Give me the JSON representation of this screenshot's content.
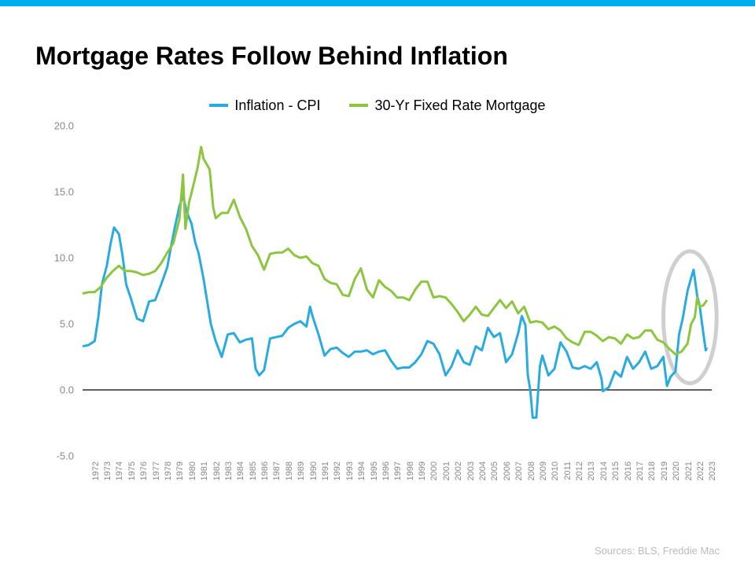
{
  "title": "Mortgage Rates Follow Behind Inflation",
  "source": "Sources: BLS, Freddie Mac",
  "chart": {
    "type": "line",
    "top_bar_color": "#00aeef",
    "background_color": "#ffffff",
    "title_fontsize": 32,
    "title_color": "#000000",
    "legend_fontsize": 18,
    "axis_label_color": "#888888",
    "axis_fontsize": 13,
    "xaxis_fontsize": 11,
    "yaxis": {
      "min": -5.0,
      "max": 20.0,
      "ticks": [
        -5.0,
        0.0,
        5.0,
        10.0,
        15.0,
        20.0
      ],
      "zero_line_color": "#000000"
    },
    "xaxis": {
      "years": [
        1972,
        1973,
        1974,
        1975,
        1976,
        1977,
        1978,
        1979,
        1980,
        1981,
        1982,
        1983,
        1984,
        1985,
        1986,
        1987,
        1988,
        1989,
        1990,
        1991,
        1992,
        1993,
        1994,
        1995,
        1996,
        1997,
        1998,
        1999,
        2000,
        2001,
        2002,
        2003,
        2004,
        2005,
        2006,
        2007,
        2008,
        2009,
        2010,
        2011,
        2012,
        2013,
        2014,
        2015,
        2016,
        2017,
        2018,
        2019,
        2020,
        2021,
        2022,
        2023
      ]
    },
    "highlight_ellipse": {
      "cx_year": 2022.2,
      "cy_value": 5.5,
      "rx_years": 2.2,
      "ry_value": 5.0,
      "stroke": "#cfcfcf",
      "stroke_width": 5
    },
    "series": [
      {
        "name": "Inflation - CPI",
        "color": "#29abe2",
        "line_width": 3.0,
        "data": [
          [
            1972,
            3.3
          ],
          [
            1972.5,
            3.4
          ],
          [
            1973,
            3.7
          ],
          [
            1973.3,
            5.5
          ],
          [
            1973.6,
            8.0
          ],
          [
            1974,
            9.4
          ],
          [
            1974.3,
            11.0
          ],
          [
            1974.6,
            12.3
          ],
          [
            1975,
            11.8
          ],
          [
            1975.3,
            10.2
          ],
          [
            1975.6,
            8.0
          ],
          [
            1976,
            6.9
          ],
          [
            1976.5,
            5.4
          ],
          [
            1977,
            5.2
          ],
          [
            1977.5,
            6.7
          ],
          [
            1978,
            6.8
          ],
          [
            1978.5,
            8.0
          ],
          [
            1979,
            9.3
          ],
          [
            1979.3,
            10.8
          ],
          [
            1979.6,
            12.2
          ],
          [
            1980,
            13.9
          ],
          [
            1980.3,
            14.7
          ],
          [
            1980.6,
            13.5
          ],
          [
            1981,
            12.6
          ],
          [
            1981.3,
            11.2
          ],
          [
            1981.6,
            10.3
          ],
          [
            1982,
            8.4
          ],
          [
            1982.3,
            6.7
          ],
          [
            1982.6,
            5.0
          ],
          [
            1983,
            3.7
          ],
          [
            1983.5,
            2.5
          ],
          [
            1984,
            4.2
          ],
          [
            1984.5,
            4.3
          ],
          [
            1985,
            3.6
          ],
          [
            1985.5,
            3.8
          ],
          [
            1986,
            3.9
          ],
          [
            1986.3,
            1.6
          ],
          [
            1986.6,
            1.1
          ],
          [
            1987,
            1.5
          ],
          [
            1987.5,
            3.9
          ],
          [
            1988,
            4.0
          ],
          [
            1988.5,
            4.1
          ],
          [
            1989,
            4.7
          ],
          [
            1989.5,
            5.0
          ],
          [
            1990,
            5.2
          ],
          [
            1990.5,
            4.8
          ],
          [
            1990.8,
            6.3
          ],
          [
            1991,
            5.6
          ],
          [
            1991.5,
            4.2
          ],
          [
            1992,
            2.6
          ],
          [
            1992.5,
            3.1
          ],
          [
            1993,
            3.2
          ],
          [
            1993.5,
            2.8
          ],
          [
            1994,
            2.5
          ],
          [
            1994.5,
            2.9
          ],
          [
            1995,
            2.9
          ],
          [
            1995.5,
            3.0
          ],
          [
            1996,
            2.7
          ],
          [
            1996.5,
            2.9
          ],
          [
            1997,
            3.0
          ],
          [
            1997.5,
            2.2
          ],
          [
            1998,
            1.6
          ],
          [
            1998.5,
            1.7
          ],
          [
            1999,
            1.7
          ],
          [
            1999.5,
            2.1
          ],
          [
            2000,
            2.7
          ],
          [
            2000.5,
            3.7
          ],
          [
            2001,
            3.5
          ],
          [
            2001.5,
            2.7
          ],
          [
            2002,
            1.1
          ],
          [
            2002.5,
            1.8
          ],
          [
            2003,
            3.0
          ],
          [
            2003.5,
            2.1
          ],
          [
            2004,
            1.9
          ],
          [
            2004.5,
            3.3
          ],
          [
            2005,
            3.0
          ],
          [
            2005.5,
            4.7
          ],
          [
            2006,
            4.0
          ],
          [
            2006.5,
            4.3
          ],
          [
            2007,
            2.1
          ],
          [
            2007.5,
            2.7
          ],
          [
            2008,
            4.3
          ],
          [
            2008.3,
            5.6
          ],
          [
            2008.6,
            4.9
          ],
          [
            2008.8,
            1.1
          ],
          [
            2009,
            0.0
          ],
          [
            2009.2,
            -2.1
          ],
          [
            2009.5,
            -2.1
          ],
          [
            2009.8,
            1.8
          ],
          [
            2010,
            2.6
          ],
          [
            2010.5,
            1.1
          ],
          [
            2011,
            1.6
          ],
          [
            2011.5,
            3.6
          ],
          [
            2012,
            2.9
          ],
          [
            2012.5,
            1.7
          ],
          [
            2013,
            1.6
          ],
          [
            2013.5,
            1.8
          ],
          [
            2014,
            1.6
          ],
          [
            2014.5,
            2.1
          ],
          [
            2014.9,
            0.8
          ],
          [
            2015,
            -0.1
          ],
          [
            2015.5,
            0.2
          ],
          [
            2016,
            1.4
          ],
          [
            2016.5,
            1.0
          ],
          [
            2017,
            2.5
          ],
          [
            2017.5,
            1.6
          ],
          [
            2018,
            2.1
          ],
          [
            2018.5,
            2.9
          ],
          [
            2019,
            1.6
          ],
          [
            2019.5,
            1.8
          ],
          [
            2020,
            2.5
          ],
          [
            2020.3,
            0.3
          ],
          [
            2020.6,
            1.0
          ],
          [
            2021,
            1.4
          ],
          [
            2021.3,
            4.2
          ],
          [
            2021.6,
            5.4
          ],
          [
            2022,
            7.5
          ],
          [
            2022.3,
            8.5
          ],
          [
            2022.5,
            9.1
          ],
          [
            2022.8,
            7.1
          ],
          [
            2023,
            6.4
          ],
          [
            2023.2,
            5.0
          ],
          [
            2023.5,
            3.0
          ],
          [
            2023.6,
            3.2
          ]
        ]
      },
      {
        "name": "30-Yr Fixed Rate Mortgage",
        "color": "#8cc63f",
        "line_width": 3.0,
        "data": [
          [
            1972,
            7.3
          ],
          [
            1972.5,
            7.4
          ],
          [
            1973,
            7.4
          ],
          [
            1973.5,
            7.8
          ],
          [
            1974,
            8.5
          ],
          [
            1974.5,
            9.0
          ],
          [
            1975,
            9.4
          ],
          [
            1975.5,
            9.0
          ],
          [
            1976,
            9.0
          ],
          [
            1976.5,
            8.9
          ],
          [
            1977,
            8.7
          ],
          [
            1977.5,
            8.8
          ],
          [
            1978,
            9.0
          ],
          [
            1978.5,
            9.6
          ],
          [
            1979,
            10.4
          ],
          [
            1979.5,
            11.1
          ],
          [
            1980,
            12.9
          ],
          [
            1980.3,
            16.3
          ],
          [
            1980.5,
            12.2
          ],
          [
            1980.8,
            14.2
          ],
          [
            1981,
            14.9
          ],
          [
            1981.5,
            16.8
          ],
          [
            1981.8,
            18.4
          ],
          [
            1982,
            17.5
          ],
          [
            1982.5,
            16.7
          ],
          [
            1982.8,
            13.8
          ],
          [
            1983,
            13.0
          ],
          [
            1983.5,
            13.4
          ],
          [
            1984,
            13.4
          ],
          [
            1984.5,
            14.4
          ],
          [
            1985,
            13.1
          ],
          [
            1985.5,
            12.2
          ],
          [
            1986,
            10.9
          ],
          [
            1986.5,
            10.2
          ],
          [
            1987,
            9.1
          ],
          [
            1987.5,
            10.3
          ],
          [
            1988,
            10.4
          ],
          [
            1988.5,
            10.4
          ],
          [
            1989,
            10.7
          ],
          [
            1989.5,
            10.2
          ],
          [
            1990,
            10.0
          ],
          [
            1990.5,
            10.1
          ],
          [
            1991,
            9.6
          ],
          [
            1991.5,
            9.4
          ],
          [
            1992,
            8.4
          ],
          [
            1992.5,
            8.1
          ],
          [
            1993,
            8.0
          ],
          [
            1993.5,
            7.2
          ],
          [
            1994,
            7.1
          ],
          [
            1994.5,
            8.4
          ],
          [
            1995,
            9.2
          ],
          [
            1995.5,
            7.6
          ],
          [
            1996,
            7.0
          ],
          [
            1996.5,
            8.3
          ],
          [
            1997,
            7.8
          ],
          [
            1997.5,
            7.5
          ],
          [
            1998,
            7.0
          ],
          [
            1998.5,
            7.0
          ],
          [
            1999,
            6.8
          ],
          [
            1999.5,
            7.6
          ],
          [
            2000,
            8.2
          ],
          [
            2000.5,
            8.2
          ],
          [
            2001,
            7.0
          ],
          [
            2001.5,
            7.1
          ],
          [
            2002,
            7.0
          ],
          [
            2002.5,
            6.5
          ],
          [
            2003,
            5.9
          ],
          [
            2003.5,
            5.2
          ],
          [
            2004,
            5.7
          ],
          [
            2004.5,
            6.3
          ],
          [
            2005,
            5.7
          ],
          [
            2005.5,
            5.6
          ],
          [
            2006,
            6.2
          ],
          [
            2006.5,
            6.8
          ],
          [
            2007,
            6.2
          ],
          [
            2007.5,
            6.7
          ],
          [
            2008,
            5.8
          ],
          [
            2008.5,
            6.3
          ],
          [
            2009,
            5.1
          ],
          [
            2009.5,
            5.2
          ],
          [
            2010,
            5.1
          ],
          [
            2010.5,
            4.6
          ],
          [
            2011,
            4.8
          ],
          [
            2011.5,
            4.5
          ],
          [
            2012,
            3.9
          ],
          [
            2012.5,
            3.6
          ],
          [
            2013,
            3.4
          ],
          [
            2013.5,
            4.4
          ],
          [
            2014,
            4.4
          ],
          [
            2014.5,
            4.1
          ],
          [
            2015,
            3.7
          ],
          [
            2015.5,
            4.0
          ],
          [
            2016,
            3.9
          ],
          [
            2016.5,
            3.5
          ],
          [
            2017,
            4.2
          ],
          [
            2017.5,
            3.9
          ],
          [
            2018,
            4.0
          ],
          [
            2018.5,
            4.5
          ],
          [
            2019,
            4.5
          ],
          [
            2019.5,
            3.8
          ],
          [
            2020,
            3.6
          ],
          [
            2020.5,
            3.1
          ],
          [
            2021,
            2.7
          ],
          [
            2021.5,
            2.9
          ],
          [
            2022,
            3.5
          ],
          [
            2022.3,
            5.0
          ],
          [
            2022.6,
            5.5
          ],
          [
            2022.8,
            7.0
          ],
          [
            2023,
            6.3
          ],
          [
            2023.3,
            6.4
          ],
          [
            2023.6,
            6.8
          ]
        ]
      }
    ]
  }
}
